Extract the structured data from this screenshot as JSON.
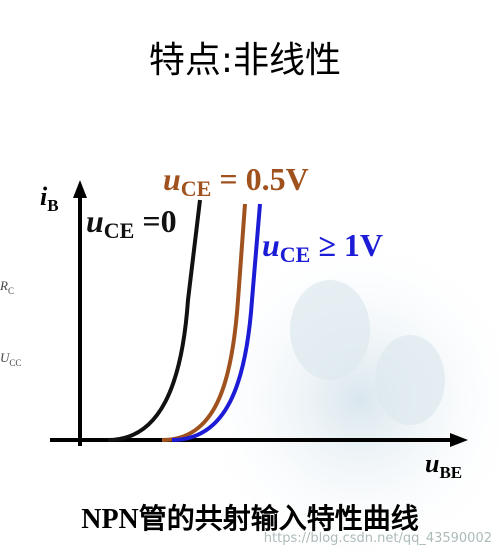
{
  "title": "特点:非线性",
  "axes": {
    "y_label": {
      "var": "i",
      "sub": "B"
    },
    "x_label": {
      "var": "u",
      "sub": "BE"
    }
  },
  "curves": [
    {
      "var": "u",
      "sub": "CE",
      "rest": " =0"
    },
    {
      "var": "u",
      "sub": "CE",
      "rest": " = 0.5V"
    },
    {
      "var": "u",
      "sub": "CE",
      "rest": " ≥ 1V"
    }
  ],
  "caption": "NPN管的共射输入特性曲线",
  "side_labels": [
    {
      "var": "R",
      "sub": "C"
    },
    {
      "var": "U",
      "sub": "CC"
    }
  ],
  "watermark": "https://blog.csdn.net/qq_43590002"
}
